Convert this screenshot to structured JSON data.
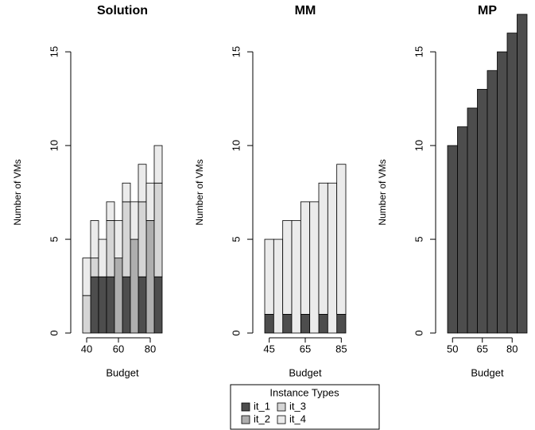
{
  "chart_data": [
    {
      "type": "bar",
      "stacked": true,
      "title": "Solution",
      "xlabel": "Budget",
      "ylabel": "Number of VMs",
      "categories": [
        "40",
        null,
        null,
        null,
        "60",
        null,
        null,
        null,
        "80",
        null
      ],
      "series": [
        {
          "name": "it_1",
          "color": "#4d4d4d",
          "values": [
            0,
            3,
            3,
            3,
            0,
            3,
            0,
            3,
            0,
            3
          ]
        },
        {
          "name": "it_2",
          "color": "#aeaeae",
          "values": [
            0,
            0,
            0,
            0,
            4,
            0,
            5,
            0,
            6,
            0
          ]
        },
        {
          "name": "it_3",
          "color": "#d5d5d5",
          "values": [
            2,
            1,
            0,
            3,
            0,
            4,
            0,
            4,
            0,
            5
          ]
        },
        {
          "name": "it_4",
          "color": "#ebebeb",
          "values": [
            2,
            2,
            2,
            1,
            2,
            1,
            2,
            2,
            2,
            2
          ]
        }
      ],
      "ylim": [
        0,
        17
      ],
      "yticks": [
        0,
        5,
        10,
        15
      ]
    },
    {
      "type": "bar",
      "stacked": true,
      "title": "MM",
      "xlabel": "Budget",
      "ylabel": "Number of VMs",
      "categories": [
        "45",
        null,
        null,
        null,
        "65",
        null,
        null,
        null,
        "85"
      ],
      "series": [
        {
          "name": "it_1",
          "color": "#4d4d4d",
          "values": [
            1,
            0,
            1,
            0,
            1,
            0,
            1,
            0,
            1
          ]
        },
        {
          "name": "it_4",
          "color": "#ebebeb",
          "values": [
            4,
            5,
            5,
            6,
            6,
            7,
            7,
            8,
            8
          ]
        }
      ],
      "ylim": [
        0,
        17
      ],
      "yticks": [
        0,
        5,
        10,
        15
      ]
    },
    {
      "type": "bar",
      "stacked": true,
      "title": "MP",
      "xlabel": "Budget",
      "ylabel": "Number of VMs",
      "categories": [
        "50",
        null,
        null,
        "65",
        null,
        null,
        "80",
        null
      ],
      "series": [
        {
          "name": "it_1",
          "color": "#4d4d4d",
          "values": [
            10,
            11,
            12,
            13,
            14,
            15,
            16,
            17
          ]
        }
      ],
      "ylim": [
        0,
        17
      ],
      "yticks": [
        0,
        5,
        10,
        15
      ]
    }
  ],
  "legend_title": "Instance Types"
}
